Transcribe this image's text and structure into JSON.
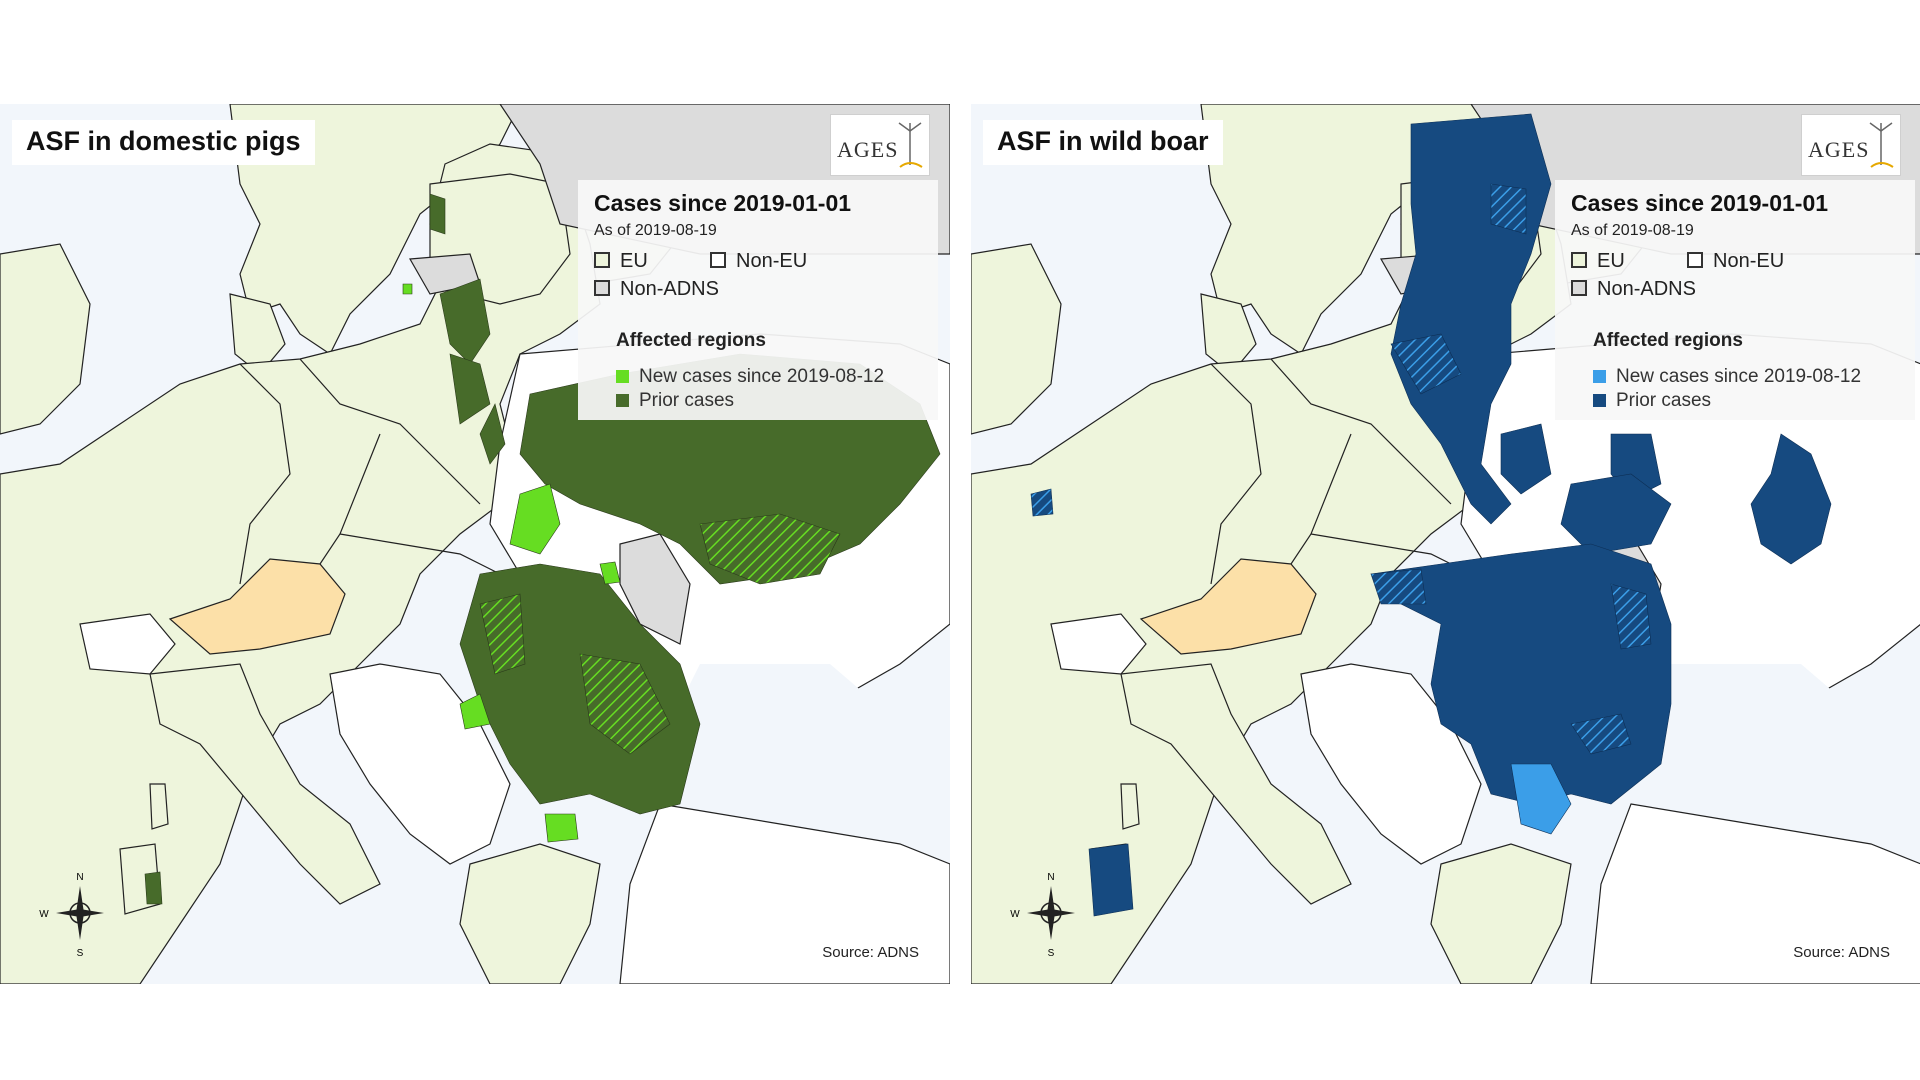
{
  "colors": {
    "sea": "#f2f6fb",
    "eu_land": "#eef5dc",
    "non_eu_land": "#ffffff",
    "non_adns_land": "#dcdcdc",
    "austria": "#fce0a8",
    "border": "#222222",
    "pigs_new": "#66dd22",
    "pigs_prior": "#476b2a",
    "boar_new": "#3b9ee8",
    "boar_prior": "#164a80"
  },
  "panels": [
    {
      "title": "ASF in domestic pigs",
      "logo": "AGES",
      "legend": {
        "title": "Cases since 2019-01-01",
        "as_of": "As of 2019-08-19",
        "eu": "EU",
        "non_eu": "Non-EU",
        "non_adns": "Non-ADNS",
        "affected_title": "Affected regions",
        "new_cases": "New cases since 2019-08-12",
        "prior_cases": "Prior cases"
      },
      "compass": {
        "n": "N",
        "s": "S",
        "w": "W"
      },
      "source": "Source: ADNS",
      "icon": "compass-rose-icon"
    },
    {
      "title": "ASF in wild boar",
      "logo": "AGES",
      "legend": {
        "title": "Cases since 2019-01-01",
        "as_of": "As of 2019-08-19",
        "eu": "EU",
        "non_eu": "Non-EU",
        "non_adns": "Non-ADNS",
        "affected_title": "Affected regions",
        "new_cases": "New cases since 2019-08-12",
        "prior_cases": "Prior cases"
      },
      "compass": {
        "n": "N",
        "s": "S",
        "w": "W"
      },
      "source": "Source: ADNS",
      "icon": "compass-rose-icon"
    }
  ]
}
